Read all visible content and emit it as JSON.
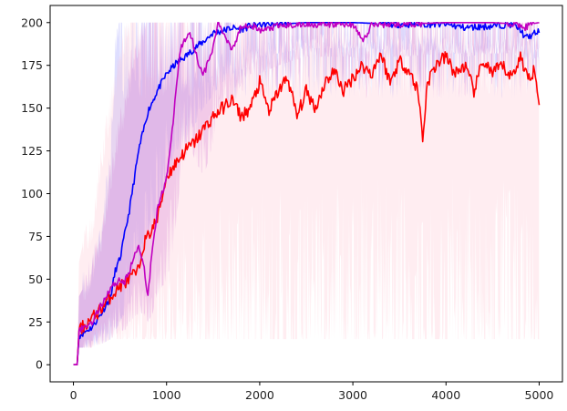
{
  "chart_data": {
    "type": "line",
    "title": "",
    "xlabel": "",
    "ylabel": "",
    "xlim": [
      -250,
      5250
    ],
    "ylim": [
      -10,
      210
    ],
    "xticks": [
      0,
      1000,
      2000,
      3000,
      4000,
      5000
    ],
    "yticks": [
      0,
      25,
      50,
      75,
      100,
      125,
      150,
      175,
      200
    ],
    "xtick_labels": [
      "0",
      "1000",
      "2000",
      "3000",
      "4000",
      "5000"
    ],
    "ytick_labels": [
      "0",
      "25",
      "50",
      "75",
      "100",
      "125",
      "150",
      "175",
      "200"
    ],
    "grid": false,
    "legend": "none",
    "series": [
      {
        "color": "#0000ff",
        "band_color": "#8888ff",
        "x": [
          0,
          40,
          60,
          200,
          300,
          400,
          450,
          500,
          600,
          700,
          800,
          900,
          1000,
          1100,
          1200,
          1300,
          1400,
          1500,
          1600,
          1700,
          1800,
          1900,
          2000,
          2200,
          2500,
          3000,
          3500,
          4000,
          4200,
          4500,
          4700,
          4800,
          4850,
          4900,
          5000
        ],
        "y": [
          0,
          0,
          17,
          22,
          30,
          40,
          55,
          62,
          90,
          125,
          148,
          160,
          170,
          176,
          180,
          185,
          189,
          194,
          195,
          197,
          196,
          198,
          199,
          199,
          200,
          200,
          199,
          199,
          197,
          198,
          199,
          196,
          191,
          192,
          195
        ],
        "band_low": [
          0,
          0,
          10,
          10,
          12,
          15,
          20,
          25,
          35,
          55,
          75,
          90,
          110,
          125,
          130,
          140,
          150,
          158,
          165,
          170,
          172,
          175,
          180,
          182,
          185,
          185,
          184,
          184,
          180,
          182,
          182,
          180,
          178,
          178,
          180
        ],
        "band_high": [
          0,
          0,
          40,
          55,
          80,
          120,
          180,
          200,
          200,
          200,
          200,
          200,
          200,
          200,
          200,
          200,
          200,
          200,
          200,
          200,
          200,
          200,
          200,
          200,
          200,
          200,
          200,
          200,
          200,
          200,
          200,
          200,
          200,
          200,
          200
        ]
      },
      {
        "color": "#ff0000",
        "band_color": "#ffc0cb",
        "x": [
          0,
          40,
          60,
          100,
          200,
          300,
          400,
          500,
          600,
          700,
          750,
          800,
          900,
          1000,
          1100,
          1200,
          1300,
          1400,
          1500,
          1600,
          1700,
          1800,
          1900,
          2000,
          2100,
          2200,
          2300,
          2400,
          2500,
          2600,
          2700,
          2800,
          2900,
          3000,
          3100,
          3200,
          3300,
          3400,
          3500,
          3600,
          3700,
          3750,
          3800,
          3900,
          4000,
          4100,
          4200,
          4300,
          4400,
          4500,
          4600,
          4700,
          4800,
          4900,
          4950,
          5000
        ],
        "y": [
          0,
          0,
          20,
          22,
          27,
          33,
          40,
          46,
          50,
          55,
          70,
          75,
          85,
          110,
          118,
          125,
          130,
          138,
          145,
          150,
          155,
          145,
          150,
          165,
          148,
          160,
          168,
          145,
          160,
          150,
          165,
          172,
          160,
          168,
          175,
          170,
          182,
          165,
          178,
          172,
          160,
          132,
          165,
          176,
          180,
          170,
          175,
          160,
          178,
          170,
          175,
          168,
          180,
          165,
          175,
          155
        ],
        "band_low": [
          0,
          0,
          10,
          10,
          10,
          12,
          15,
          15,
          15,
          15,
          15,
          15,
          15,
          15,
          15,
          15,
          15,
          15,
          15,
          15,
          15,
          15,
          15,
          15,
          15,
          15,
          15,
          15,
          15,
          15,
          15,
          15,
          15,
          15,
          15,
          15,
          15,
          15,
          15,
          15,
          15,
          15,
          15,
          15,
          15,
          15,
          15,
          15,
          15,
          15,
          15,
          15,
          15,
          15,
          15,
          15
        ],
        "band_high": [
          0,
          0,
          60,
          70,
          80,
          120,
          150,
          180,
          200,
          200,
          200,
          200,
          200,
          200,
          200,
          200,
          200,
          200,
          200,
          200,
          200,
          200,
          200,
          200,
          200,
          200,
          200,
          200,
          200,
          200,
          200,
          200,
          200,
          200,
          200,
          200,
          200,
          200,
          200,
          200,
          200,
          200,
          200,
          200,
          200,
          200,
          200,
          200,
          200,
          200,
          200,
          200,
          200,
          200,
          200,
          200
        ]
      },
      {
        "color": "#c000c0",
        "band_color": "#d070d0",
        "x": [
          0,
          40,
          60,
          200,
          300,
          400,
          500,
          550,
          600,
          700,
          750,
          800,
          850,
          900,
          1000,
          1050,
          1100,
          1150,
          1200,
          1250,
          1300,
          1350,
          1400,
          1500,
          1550,
          1600,
          1650,
          1700,
          1750,
          1800,
          1900,
          2000,
          2200,
          2500,
          3000,
          3100,
          3150,
          3200,
          3500,
          4000,
          4500,
          4800,
          4850,
          4900,
          5000
        ],
        "y": [
          0,
          0,
          20,
          25,
          35,
          45,
          50,
          48,
          55,
          70,
          60,
          40,
          70,
          90,
          110,
          130,
          160,
          185,
          190,
          195,
          185,
          175,
          170,
          185,
          200,
          195,
          190,
          185,
          190,
          198,
          199,
          195,
          198,
          199,
          199,
          190,
          192,
          199,
          199,
          200,
          200,
          199,
          197,
          199,
          200
        ],
        "band_low": [
          0,
          0,
          10,
          10,
          12,
          15,
          20,
          20,
          25,
          30,
          30,
          25,
          30,
          40,
          50,
          60,
          80,
          110,
          120,
          130,
          120,
          115,
          110,
          130,
          150,
          150,
          150,
          150,
          155,
          165,
          170,
          170,
          175,
          180,
          180,
          175,
          175,
          180,
          180,
          182,
          182,
          182,
          180,
          182,
          185
        ],
        "band_high": [
          0,
          0,
          40,
          55,
          75,
          110,
          140,
          150,
          170,
          190,
          195,
          200,
          200,
          200,
          200,
          200,
          200,
          200,
          200,
          200,
          200,
          200,
          200,
          200,
          200,
          200,
          200,
          200,
          200,
          200,
          200,
          200,
          200,
          200,
          200,
          200,
          200,
          200,
          200,
          200,
          200,
          200,
          200,
          200,
          200
        ]
      }
    ]
  }
}
